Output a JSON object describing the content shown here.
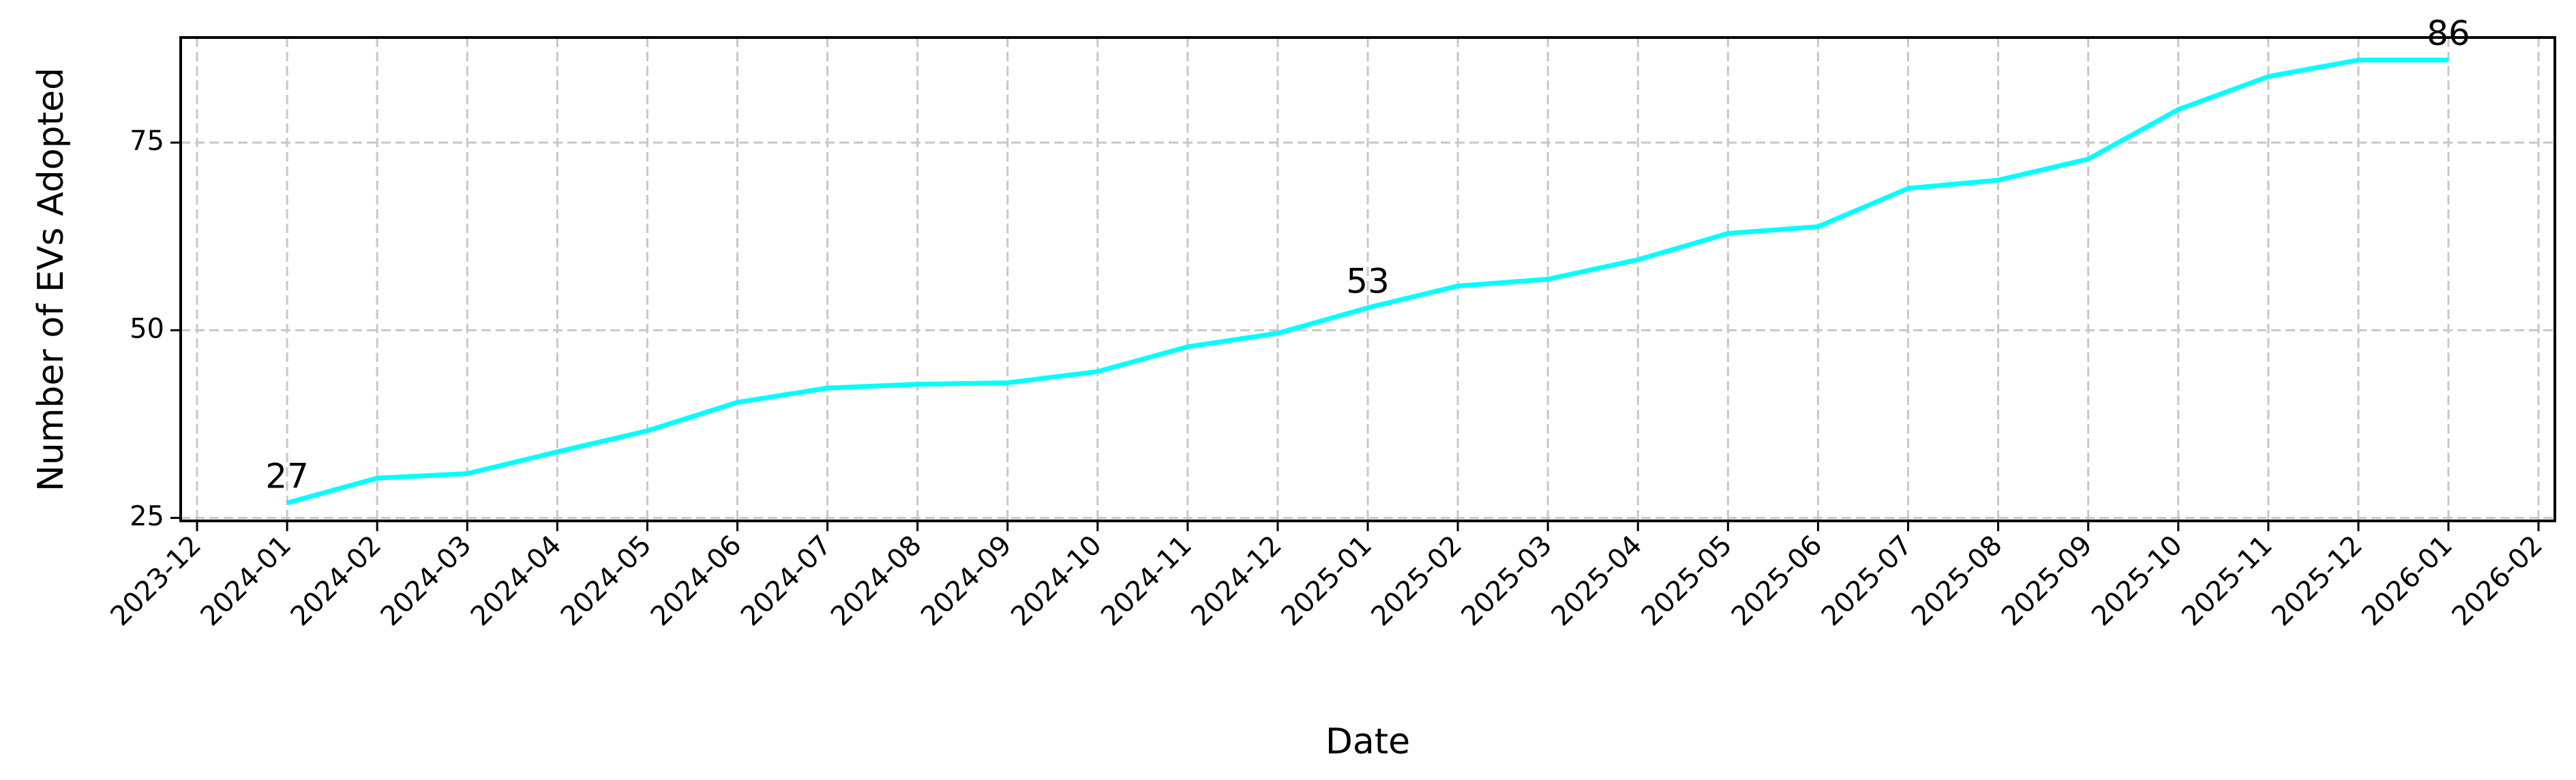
{
  "chart_data": {
    "type": "line",
    "xlabel": "Date",
    "ylabel": "Number of EVs Adopted",
    "x": [
      "2024-01",
      "2024-02",
      "2024-03",
      "2024-04",
      "2024-05",
      "2024-06",
      "2024-07",
      "2024-08",
      "2024-09",
      "2024-10",
      "2024-11",
      "2024-12",
      "2025-01",
      "2025-02",
      "2025-03",
      "2025-04",
      "2025-05",
      "2025-06",
      "2025-07",
      "2025-08",
      "2025-09",
      "2025-10",
      "2025-11",
      "2025-12",
      "2026-01"
    ],
    "series": [
      {
        "name": "EVs Adopted",
        "color": "#00ffff",
        "values": [
          27,
          30.3,
          30.9,
          33.8,
          36.6,
          40.4,
          42.3,
          42.8,
          43.0,
          44.5,
          47.8,
          49.6,
          53,
          55.9,
          56.8,
          59.4,
          62.9,
          63.8,
          68.9,
          70.0,
          72.8,
          79.4,
          83.8,
          86,
          86
        ]
      }
    ],
    "annotations": [
      {
        "x": "2024-01",
        "value": 27
      },
      {
        "x": "2025-01",
        "value": 53
      },
      {
        "x": "2026-01",
        "value": 86
      }
    ],
    "xticks": [
      "2023-12",
      "2024-01",
      "2024-02",
      "2024-03",
      "2024-04",
      "2024-05",
      "2024-06",
      "2024-07",
      "2024-08",
      "2024-09",
      "2024-10",
      "2024-11",
      "2024-12",
      "2025-01",
      "2025-02",
      "2025-03",
      "2025-04",
      "2025-05",
      "2025-06",
      "2025-07",
      "2025-08",
      "2025-09",
      "2025-10",
      "2025-11",
      "2025-12",
      "2026-01",
      "2026-02"
    ],
    "ylim": [
      24.6,
      89
    ],
    "yticks": [
      25,
      50,
      75
    ],
    "grid": true
  }
}
